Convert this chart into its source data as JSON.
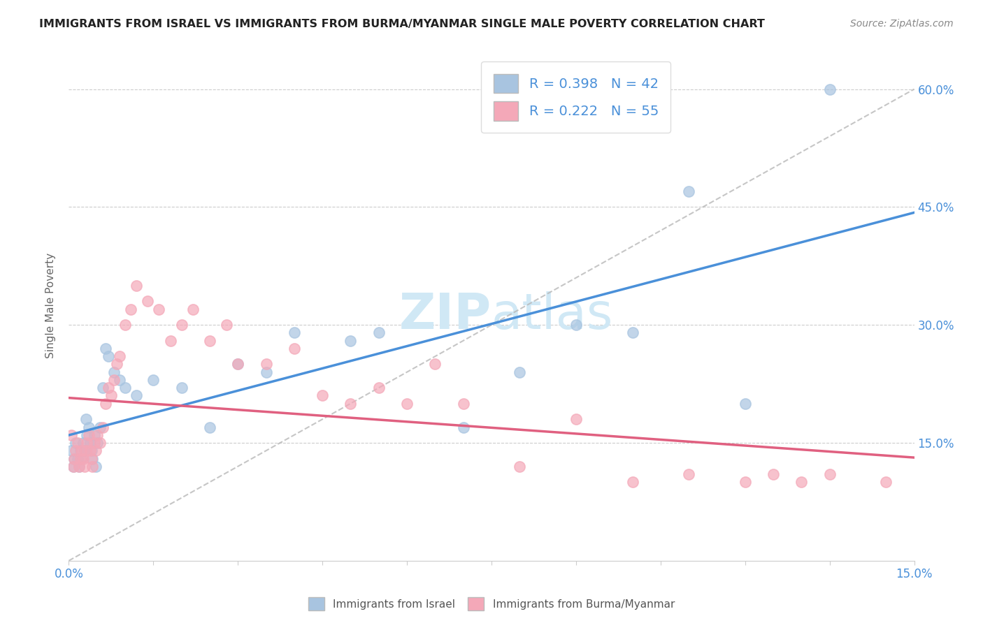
{
  "title": "IMMIGRANTS FROM ISRAEL VS IMMIGRANTS FROM BURMA/MYANMAR SINGLE MALE POVERTY CORRELATION CHART",
  "source": "Source: ZipAtlas.com",
  "ylabel": "Single Male Poverty",
  "xlim": [
    0.0,
    15.0
  ],
  "ylim": [
    0.0,
    65.0
  ],
  "israel_R": 0.398,
  "israel_N": 42,
  "burma_R": 0.222,
  "burma_N": 55,
  "israel_color": "#a8c4e0",
  "burma_color": "#f4a8b8",
  "israel_line_color": "#4a90d9",
  "burma_line_color": "#e06080",
  "diag_line_color": "#b8b8b8",
  "watermark_color": "#d0e8f5",
  "background_color": "#ffffff",
  "israel_x": [
    0.05,
    0.08,
    0.1,
    0.12,
    0.15,
    0.18,
    0.2,
    0.22,
    0.25,
    0.28,
    0.3,
    0.32,
    0.35,
    0.38,
    0.4,
    0.42,
    0.45,
    0.48,
    0.5,
    0.55,
    0.6,
    0.65,
    0.7,
    0.8,
    0.9,
    1.0,
    1.2,
    1.5,
    2.0,
    2.5,
    3.0,
    3.5,
    4.0,
    5.0,
    5.5,
    7.0,
    8.0,
    9.0,
    10.0,
    11.0,
    12.0,
    13.5
  ],
  "israel_y": [
    14,
    12,
    13,
    15,
    13,
    12,
    14,
    13,
    15,
    14,
    18,
    16,
    17,
    15,
    14,
    13,
    16,
    12,
    15,
    17,
    22,
    27,
    26,
    24,
    23,
    22,
    21,
    23,
    22,
    17,
    25,
    24,
    29,
    28,
    29,
    17,
    24,
    30,
    29,
    47,
    20,
    60
  ],
  "burma_x": [
    0.05,
    0.08,
    0.1,
    0.12,
    0.15,
    0.18,
    0.2,
    0.22,
    0.25,
    0.28,
    0.3,
    0.32,
    0.35,
    0.38,
    0.4,
    0.42,
    0.45,
    0.48,
    0.5,
    0.55,
    0.6,
    0.65,
    0.7,
    0.75,
    0.8,
    0.85,
    0.9,
    1.0,
    1.1,
    1.2,
    1.4,
    1.6,
    1.8,
    2.0,
    2.2,
    2.5,
    2.8,
    3.0,
    3.5,
    4.0,
    4.5,
    5.0,
    5.5,
    6.0,
    6.5,
    7.0,
    8.0,
    9.0,
    10.0,
    11.0,
    12.0,
    12.5,
    13.0,
    13.5,
    14.5
  ],
  "burma_y": [
    16,
    12,
    13,
    14,
    15,
    12,
    13,
    14,
    13,
    12,
    14,
    15,
    16,
    14,
    13,
    12,
    15,
    14,
    16,
    15,
    17,
    20,
    22,
    21,
    23,
    25,
    26,
    30,
    32,
    35,
    33,
    32,
    28,
    30,
    32,
    28,
    30,
    25,
    25,
    27,
    21,
    20,
    22,
    20,
    25,
    20,
    12,
    18,
    10,
    11,
    10,
    11,
    10,
    11,
    10
  ]
}
